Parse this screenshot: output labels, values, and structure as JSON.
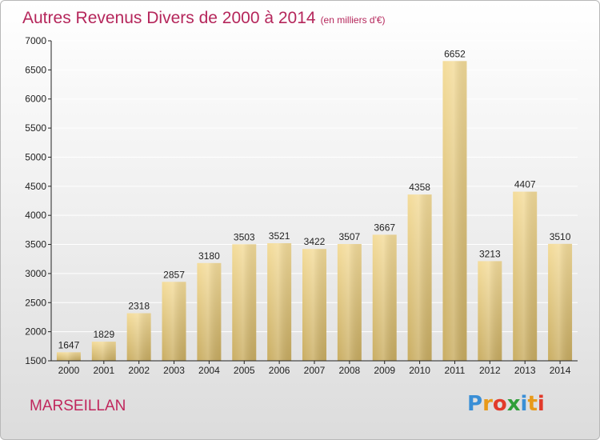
{
  "header": {
    "title": "Autres Revenus Divers de 2000 à 2014",
    "unit": "(en milliers d'€)"
  },
  "commune": "MARSEILLAN",
  "logo": {
    "text": "Proxiti",
    "letters": [
      "P",
      "r",
      "o",
      "x",
      "i",
      "t",
      "i"
    ],
    "colors": [
      "#3a8fd6",
      "#e89a1a",
      "#e23a2a",
      "#2f9f3a",
      "#3a8fd6",
      "#e89a1a",
      "#e23a2a"
    ]
  },
  "colors": {
    "title": "#b5265b",
    "bar_top": "#f4dc9a",
    "bar_bottom": "#c9ad62",
    "axis": "#222222",
    "grid": "#ffffff"
  },
  "chart_data": {
    "type": "bar",
    "title": "Autres Revenus Divers de 2000 à 2014",
    "subtitle": "(en milliers d'€)",
    "categories": [
      "2000",
      "2001",
      "2002",
      "2003",
      "2004",
      "2005",
      "2006",
      "2007",
      "2008",
      "2009",
      "2010",
      "2011",
      "2012",
      "2013",
      "2014"
    ],
    "values": [
      1647,
      1829,
      2318,
      2857,
      3180,
      3503,
      3521,
      3422,
      3507,
      3667,
      4358,
      6652,
      3213,
      4407,
      3510
    ],
    "ylim": [
      1500,
      7000
    ],
    "yticks": [
      1500,
      2000,
      2500,
      3000,
      3500,
      4000,
      4500,
      5000,
      5500,
      6000,
      6500,
      7000
    ],
    "grid": true,
    "legend": "none"
  }
}
